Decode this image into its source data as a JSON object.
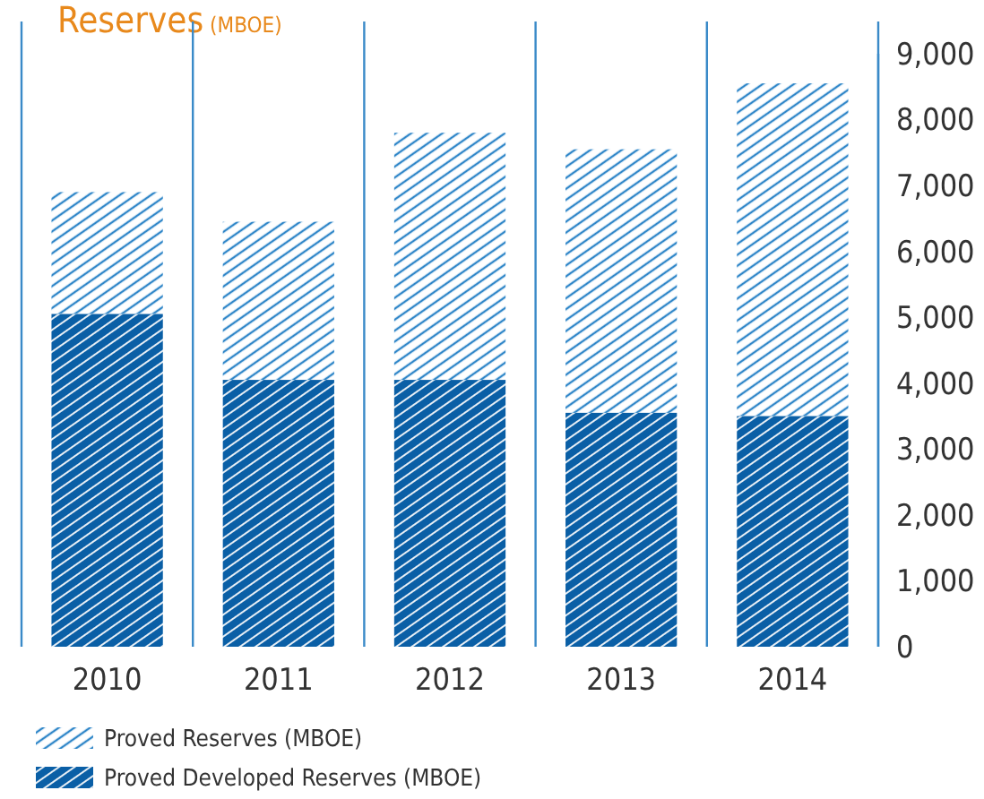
{
  "chart_data": {
    "type": "bar",
    "title": "Reserves (MBOE)",
    "categories": [
      "2010",
      "2011",
      "2012",
      "2013",
      "2014"
    ],
    "stacked": true,
    "series": [
      {
        "name": "Proved Developed Reserves (MBOE)",
        "color": "#0a5fa6",
        "values": [
          5050,
          4050,
          4050,
          3550,
          3500
        ]
      },
      {
        "name": "Proved Reserves (MBOE)",
        "color": "#2f86c8",
        "values": [
          1850,
          2400,
          3750,
          4000,
          5050
        ]
      }
    ],
    "ylim": [
      0,
      9000
    ],
    "yticks": [
      {
        "value": 0,
        "label": "0"
      },
      {
        "value": 1000,
        "label": "1,000"
      },
      {
        "value": 2000,
        "label": "2,000"
      },
      {
        "value": 3000,
        "label": "3,000"
      },
      {
        "value": 4000,
        "label": "4,000"
      },
      {
        "value": 5000,
        "label": "5,000"
      },
      {
        "value": 6000,
        "label": "6,000"
      },
      {
        "value": 7000,
        "label": "7,000"
      },
      {
        "value": 8000,
        "label": "8,000"
      },
      {
        "value": 9000,
        "label": "9,000"
      }
    ],
    "grid": "x",
    "legend": "bottom left"
  }
}
